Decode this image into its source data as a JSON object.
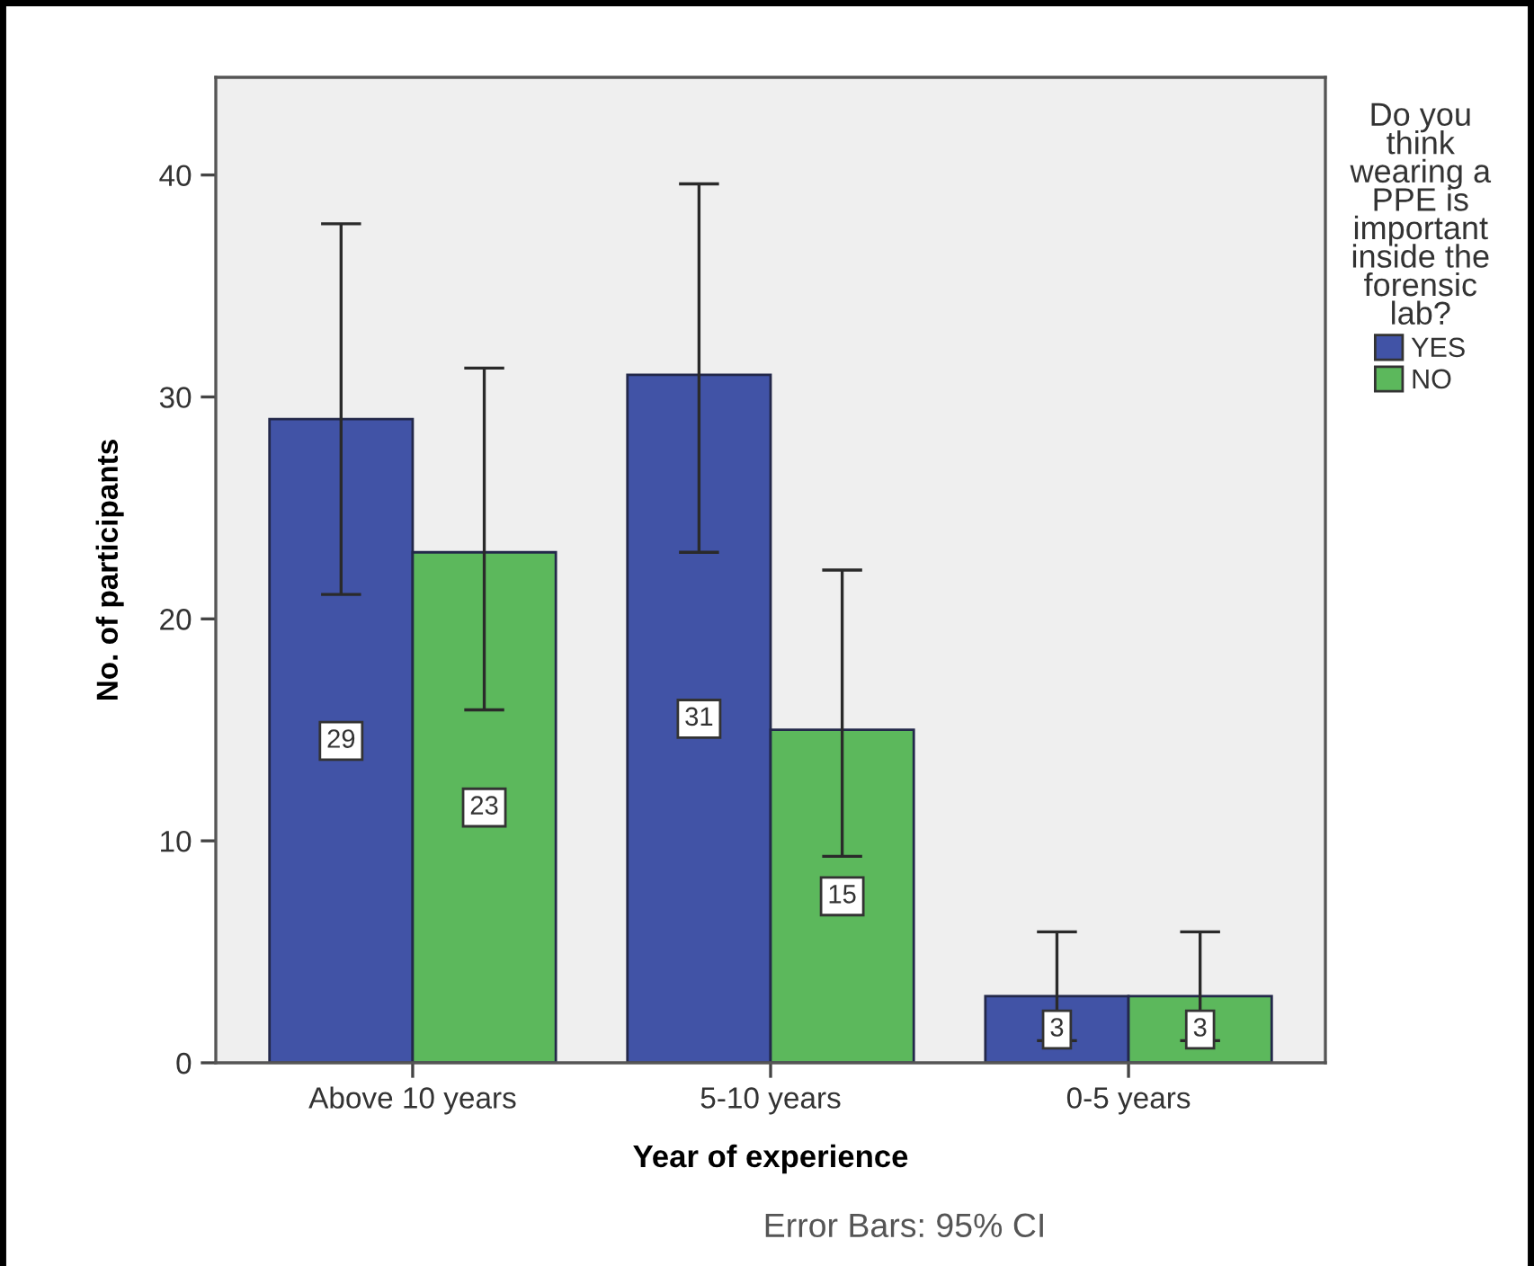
{
  "chart_data": {
    "type": "bar",
    "xlabel": "Year of experience",
    "ylabel": "No. of participants",
    "legend_title": "Do you\nthink\nwearing a\nPPE is\nimportant\ninside the\nforensic\nlab?",
    "categories": [
      "Above 10 years",
      "5-10 years",
      "0-5 years"
    ],
    "series": [
      {
        "name": "YES",
        "color": "#4153a6",
        "values": [
          29,
          31,
          3
        ],
        "errors": [
          [
            21.1,
            37.8
          ],
          [
            23.0,
            39.6
          ],
          [
            1.0,
            5.9
          ]
        ]
      },
      {
        "name": "NO",
        "color": "#5cb85c",
        "values": [
          23,
          15,
          3
        ],
        "errors": [
          [
            15.9,
            31.3
          ],
          [
            9.3,
            22.2
          ],
          [
            1.0,
            5.9
          ]
        ]
      }
    ],
    "ylim": [
      0,
      44.4
    ],
    "yticks": [
      0,
      10,
      20,
      30,
      40
    ],
    "grid": false,
    "legend": "right",
    "data_labels": true,
    "annotations": [
      "Error Bars: 95% CI"
    ]
  }
}
